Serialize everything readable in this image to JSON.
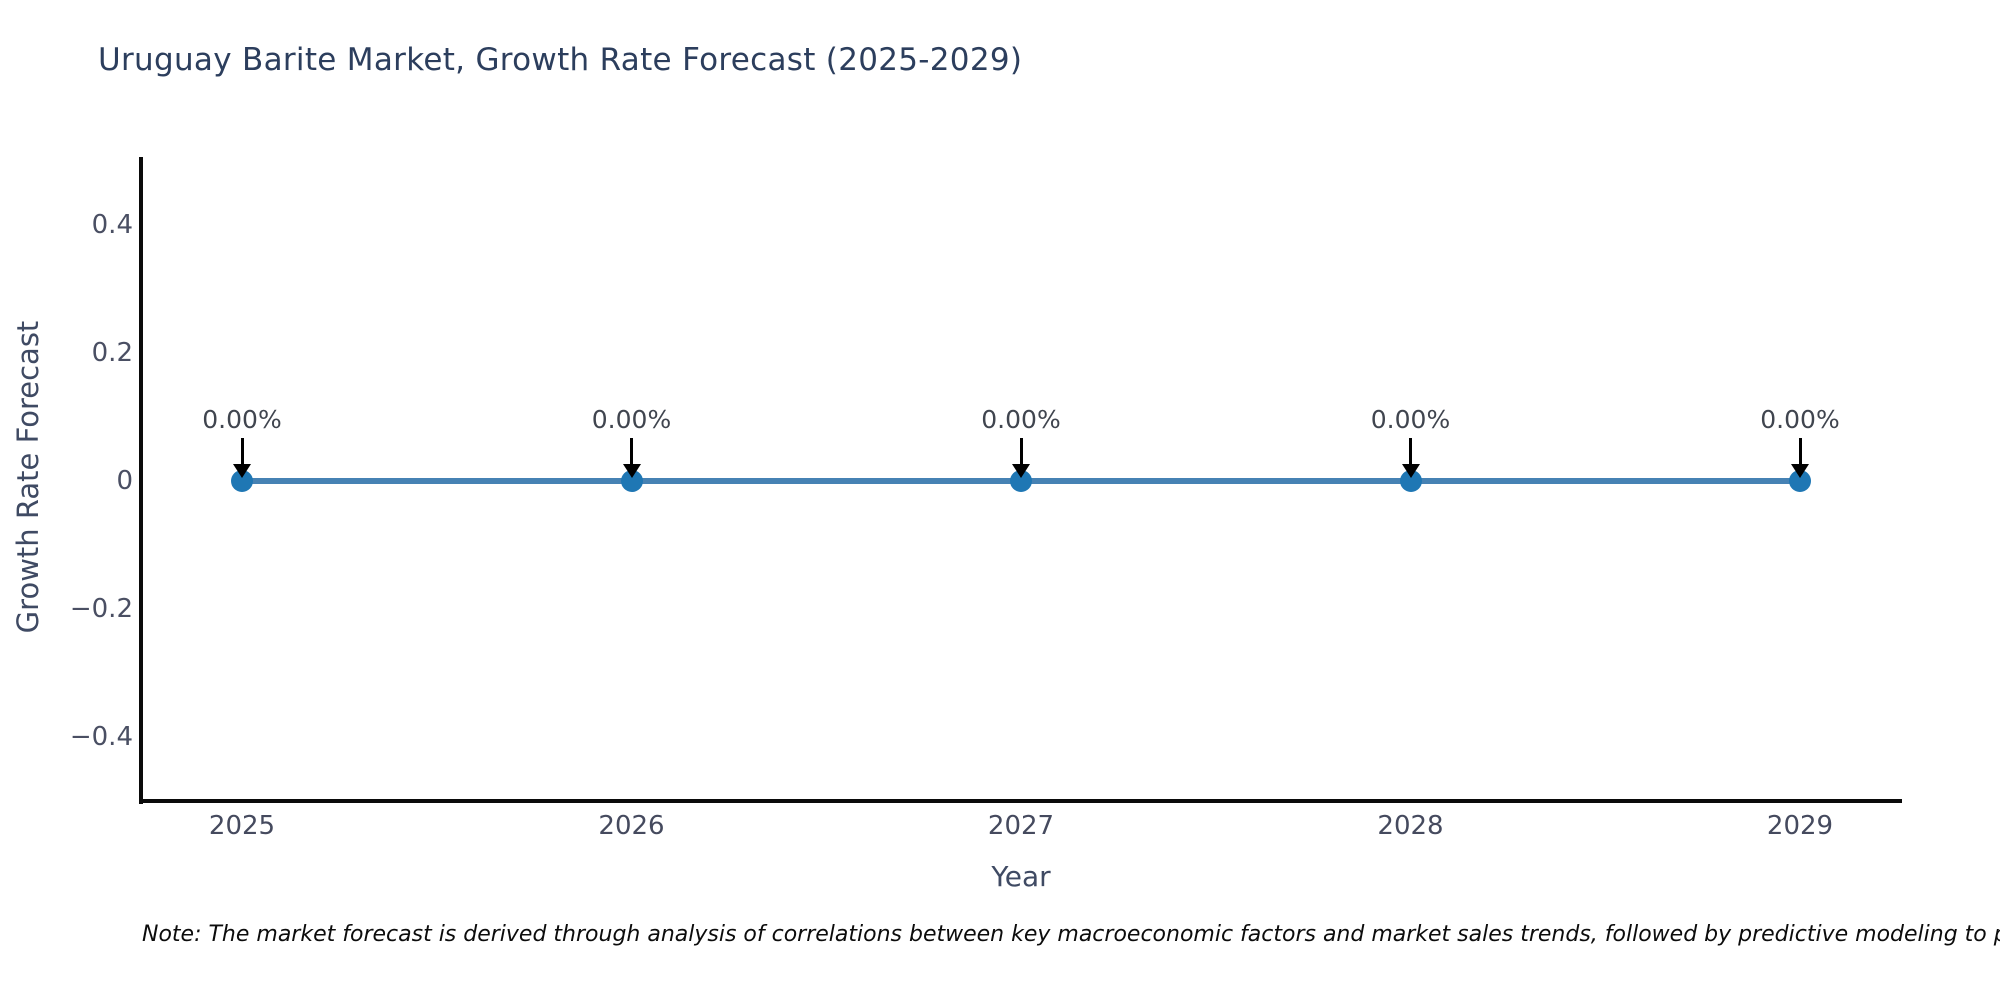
{
  "title": "Uruguay Barite Market, Growth Rate Forecast (2025-2029)",
  "note": "Note: The market forecast is derived through analysis of correlations between key macroeconomic factors and market sales trends, followed by predictive modeling to project future sales.",
  "chart_data": {
    "type": "line",
    "title": "Uruguay Barite Market, Growth Rate Forecast (2025-2029)",
    "xlabel": "Year",
    "ylabel": "Growth Rate Forecast",
    "categories": [
      "2025",
      "2026",
      "2027",
      "2028",
      "2029"
    ],
    "series": [
      {
        "name": "Growth Rate Forecast",
        "values": [
          0,
          0,
          0,
          0,
          0
        ],
        "point_labels": [
          "0.00%",
          "0.00%",
          "0.00%",
          "0.00%",
          "0.00%"
        ]
      }
    ],
    "ytick_labels": [
      "0.4",
      "0.2",
      "0",
      "−0.2",
      "−0.4"
    ],
    "ytick_values": [
      0.4,
      0.2,
      0,
      -0.2,
      -0.4
    ],
    "ylim": [
      -0.51,
      0.51
    ],
    "grid": false,
    "legend_position": "none",
    "line_color": "#4682b4",
    "marker_color": "#1f77b4",
    "axis_color": "#0a0a0a",
    "annotation_arrow_color": "#000000",
    "background_color": "#ffffff"
  },
  "colors": {
    "title_text": "#2c3e5d",
    "tick_text": "#4a4f63",
    "axis_title_text": "#3f4a63",
    "annotation_text": "#40454f",
    "note_text": "#0c0c0c"
  }
}
